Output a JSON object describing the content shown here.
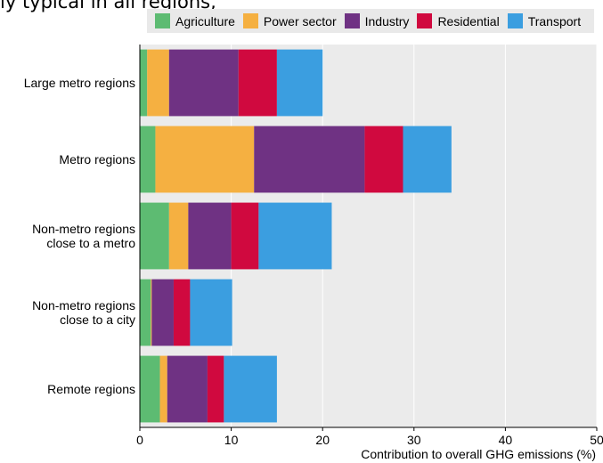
{
  "header": {
    "clipped_text": "ly typical in all regions,"
  },
  "chart_data": {
    "type": "bar",
    "orientation": "horizontal",
    "stacked": true,
    "categories": [
      "Large metro regions",
      "Metro regions",
      "Non-metro regions\nclose to a metro",
      "Non-metro regions\nclose to a city",
      "Remote regions"
    ],
    "series": [
      {
        "name": "Agriculture",
        "color": "#5dbb72",
        "values": [
          0.8,
          1.7,
          3.2,
          1.2,
          2.2
        ]
      },
      {
        "name": "Power sector",
        "color": "#f5b041",
        "values": [
          2.4,
          10.8,
          2.1,
          0.1,
          0.8
        ]
      },
      {
        "name": "Industry",
        "color": "#6f3283",
        "values": [
          7.6,
          12.1,
          4.7,
          2.4,
          4.4
        ]
      },
      {
        "name": "Residential",
        "color": "#d0093f",
        "values": [
          4.2,
          4.2,
          3.0,
          1.8,
          1.8
        ]
      },
      {
        "name": "Transport",
        "color": "#3b9ee0",
        "values": [
          5.0,
          5.3,
          8.0,
          4.6,
          5.8
        ]
      }
    ],
    "xlabel": "Contribution to overall GHG emissions (%)",
    "xlim": [
      0,
      50
    ],
    "xticks": [
      0,
      10,
      20,
      30,
      40,
      50
    ],
    "grid": true,
    "legend_position": "top"
  }
}
